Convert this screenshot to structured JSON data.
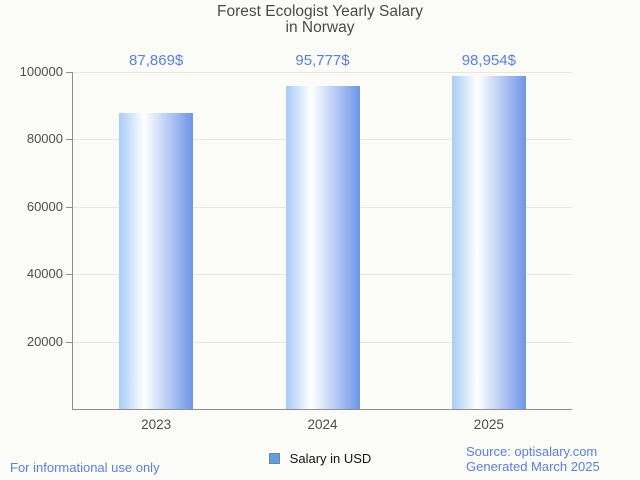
{
  "title": {
    "line1": "Forest Ecologist Yearly Salary",
    "line2": "in Norway"
  },
  "chart_data": {
    "type": "bar",
    "title": "Forest Ecologist Yearly Salary in Norway",
    "title_lines": [
      "Forest Ecologist Yearly Salary",
      "in Norway"
    ],
    "categories": [
      "2023",
      "2024",
      "2025"
    ],
    "series": [
      {
        "name": "Salary in USD",
        "values": [
          87869,
          95777,
          98954
        ],
        "value_labels": [
          "87,869$",
          "95,777$",
          "98,954$"
        ]
      }
    ],
    "xlabel": "",
    "ylabel": "",
    "ylim": [
      0,
      100000
    ],
    "yticks": [
      100000,
      80000,
      60000,
      40000,
      20000
    ],
    "grid": true,
    "legend_position": "bottom"
  },
  "legend": {
    "label": "Salary in USD"
  },
  "footer": {
    "left": "For informational use only",
    "source": "Source: optisalary.com",
    "generated": "Generated March 2025"
  },
  "colors": {
    "background": "#fbfbf7",
    "title_text": "#4a4a4a",
    "axis_text": "#4f4f4f",
    "axis_line": "#8f8f8f",
    "gridline": "#e7e7e4",
    "accent_text": "#5b80d5",
    "bar_gradient": [
      "#a6ccf6",
      "#ffffff",
      "#6e95e8"
    ],
    "legend_swatch_fill": "#5d9fe2",
    "legend_swatch_border": "#7f8184"
  }
}
